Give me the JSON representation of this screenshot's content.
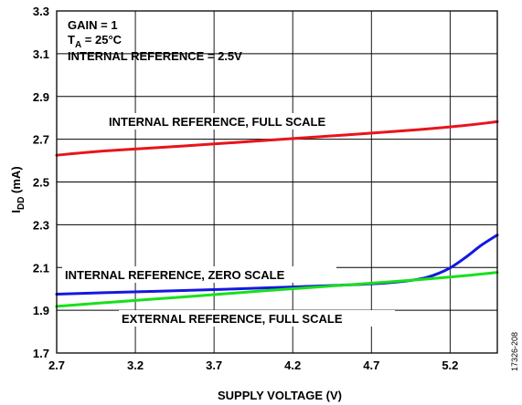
{
  "chart_data": {
    "type": "line",
    "xlabel": "SUPPLY VOLTAGE (V)",
    "ylabel": {
      "main": "I",
      "sub": "DD",
      "unit": " (mA)"
    },
    "xlim": [
      2.7,
      5.5
    ],
    "ylim": [
      1.7,
      3.3
    ],
    "x_ticks": [
      2.7,
      3.2,
      3.7,
      4.2,
      4.7,
      5.2
    ],
    "x_tick_labels": [
      "2.7",
      "3.2",
      "3.7",
      "4.2",
      "4.7",
      "5.2"
    ],
    "y_ticks": [
      1.7,
      1.9,
      2.1,
      2.3,
      2.5,
      2.7,
      2.9,
      3.1,
      3.3
    ],
    "y_tick_labels": [
      "1.7",
      "1.9",
      "2.1",
      "2.3",
      "2.5",
      "2.7",
      "2.9",
      "3.1",
      "3.3"
    ],
    "grid": true,
    "conditions": {
      "line1": "GAIN = 1",
      "line2_main": "T",
      "line2_sub": "A",
      "line2_rest": " = 25°C",
      "line3": "INTERNAL REFERENCE = 2.5V"
    },
    "series": [
      {
        "name": "INTERNAL REFERENCE, FULL SCALE",
        "color": "#e8141c",
        "x": [
          2.7,
          3.0,
          3.5,
          4.0,
          4.5,
          5.0,
          5.3,
          5.5
        ],
        "y": [
          2.625,
          2.645,
          2.668,
          2.693,
          2.718,
          2.745,
          2.765,
          2.782
        ]
      },
      {
        "name": "INTERNAL REFERENCE, ZERO SCALE",
        "color": "#1418e0",
        "x": [
          2.7,
          3.0,
          3.5,
          4.0,
          4.5,
          4.8,
          5.0,
          5.1,
          5.2,
          5.3,
          5.4,
          5.5
        ],
        "y": [
          1.975,
          1.982,
          1.992,
          2.004,
          2.017,
          2.028,
          2.045,
          2.065,
          2.098,
          2.148,
          2.205,
          2.252
        ]
      },
      {
        "name": "EXTERNAL REFERENCE, FULL SCALE",
        "color": "#18e01c",
        "x": [
          2.7,
          3.0,
          3.5,
          4.0,
          4.5,
          5.0,
          5.3,
          5.5
        ],
        "y": [
          1.918,
          1.935,
          1.962,
          1.99,
          2.016,
          2.043,
          2.062,
          2.077
        ]
      }
    ],
    "figure_id": "17326-208"
  }
}
